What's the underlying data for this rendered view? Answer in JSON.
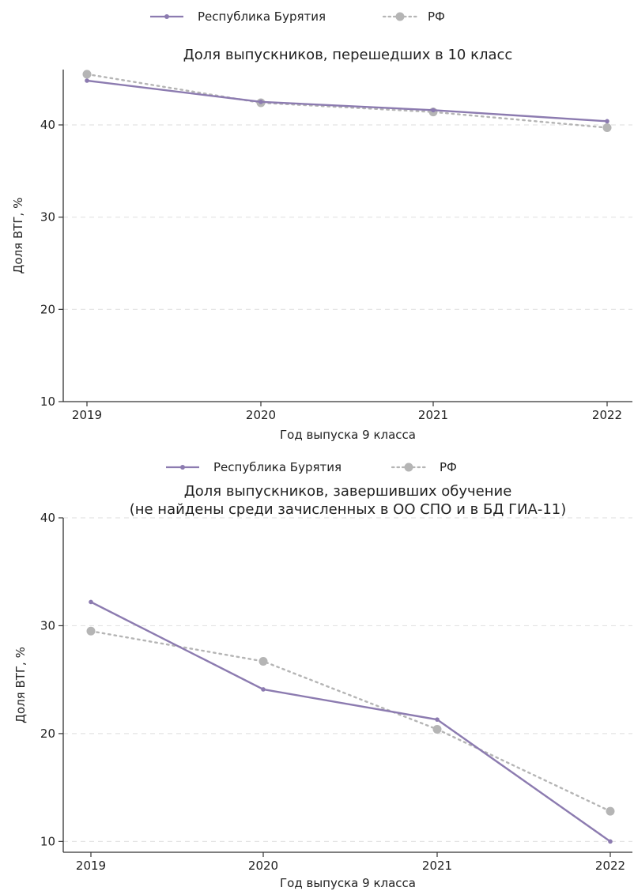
{
  "chart_data": [
    {
      "type": "line",
      "title": "Доля выпускников, перешедших в 10 класс",
      "title_line2": "",
      "xlabel": "Год выпуска 9 класса",
      "ylabel": "Доля ВТГ, %",
      "categories": [
        "2019",
        "2020",
        "2021",
        "2022"
      ],
      "ylim": [
        10,
        46
      ],
      "yticks": [
        10,
        20,
        30,
        40
      ],
      "grid": "horizontal dashed",
      "legend_position": "top-center",
      "series": [
        {
          "name": "Республика Бурятия",
          "values": [
            44.8,
            42.5,
            41.6,
            40.4
          ],
          "color": "#8c7bb0",
          "style": "solid"
        },
        {
          "name": "РФ",
          "values": [
            45.5,
            42.4,
            41.4,
            39.7
          ],
          "color": "#b5b5b5",
          "style": "dotted"
        }
      ]
    },
    {
      "type": "line",
      "title": "Доля выпускников, завершивших обучение",
      "title_line2": "(не найдены среди зачисленных в ОО СПО и в БД ГИА-11)",
      "xlabel": "Год выпуска 9 класса",
      "ylabel": "Доля ВТГ, %",
      "categories": [
        "2019",
        "2020",
        "2021",
        "2022"
      ],
      "ylim": [
        9,
        40
      ],
      "yticks": [
        10,
        20,
        30,
        40
      ],
      "grid": "horizontal dashed",
      "legend_position": "top-center",
      "series": [
        {
          "name": "Республика Бурятия",
          "values": [
            32.2,
            24.1,
            21.3,
            10.0
          ],
          "color": "#8c7bb0",
          "style": "solid"
        },
        {
          "name": "РФ",
          "values": [
            29.5,
            26.7,
            20.4,
            12.8
          ],
          "color": "#b5b5b5",
          "style": "dotted"
        }
      ]
    }
  ]
}
